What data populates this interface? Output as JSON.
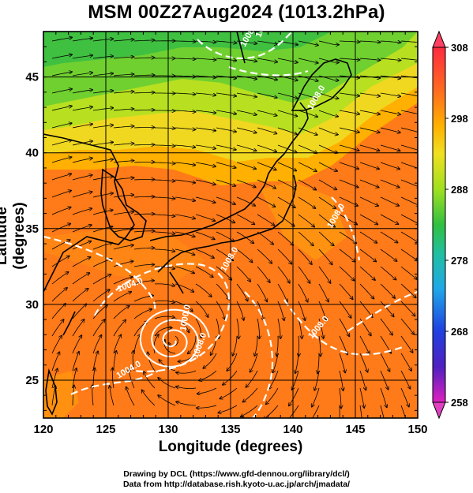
{
  "title": "MSM 00Z27Aug2024 (1013.2hPa)",
  "x_axis": {
    "label": "Longitude (degrees)",
    "range": [
      120,
      150
    ],
    "ticks": [
      "120",
      "125",
      "130",
      "135",
      "140",
      "145",
      "150"
    ]
  },
  "y_axis": {
    "label": "Latitude  (degrees)",
    "range": [
      22.5,
      48
    ],
    "ticks": [
      "25",
      "30",
      "35",
      "40",
      "45"
    ]
  },
  "colorbar": {
    "range": [
      258,
      308
    ],
    "ticks": [
      "308",
      "298",
      "288",
      "278",
      "268",
      "258"
    ],
    "colors": [
      "#ff4060",
      "#ff7a1a",
      "#ffb000",
      "#f2e020",
      "#b8e020",
      "#40c040",
      "#20c0a0",
      "#20a0e0",
      "#2040e0",
      "#6020c0",
      "#e020c0"
    ]
  },
  "contour_labels": [
    "1008.0",
    "1008.0",
    "1008.0",
    "1004.0",
    "1004.0",
    "1008.0",
    "1008.0",
    "1008.0",
    "1008.0",
    "1000.0"
  ],
  "credits": [
    "Drawing by DCL (https://www.gfd-dennou.org/library/dcl/)",
    "Data from http://database.rish.kyoto-u.ac.jp/arch/jmadata/"
  ],
  "map_features": [
    "temperature-field",
    "streamlines",
    "pressure-contours",
    "coastlines",
    "typhoon-center"
  ]
}
